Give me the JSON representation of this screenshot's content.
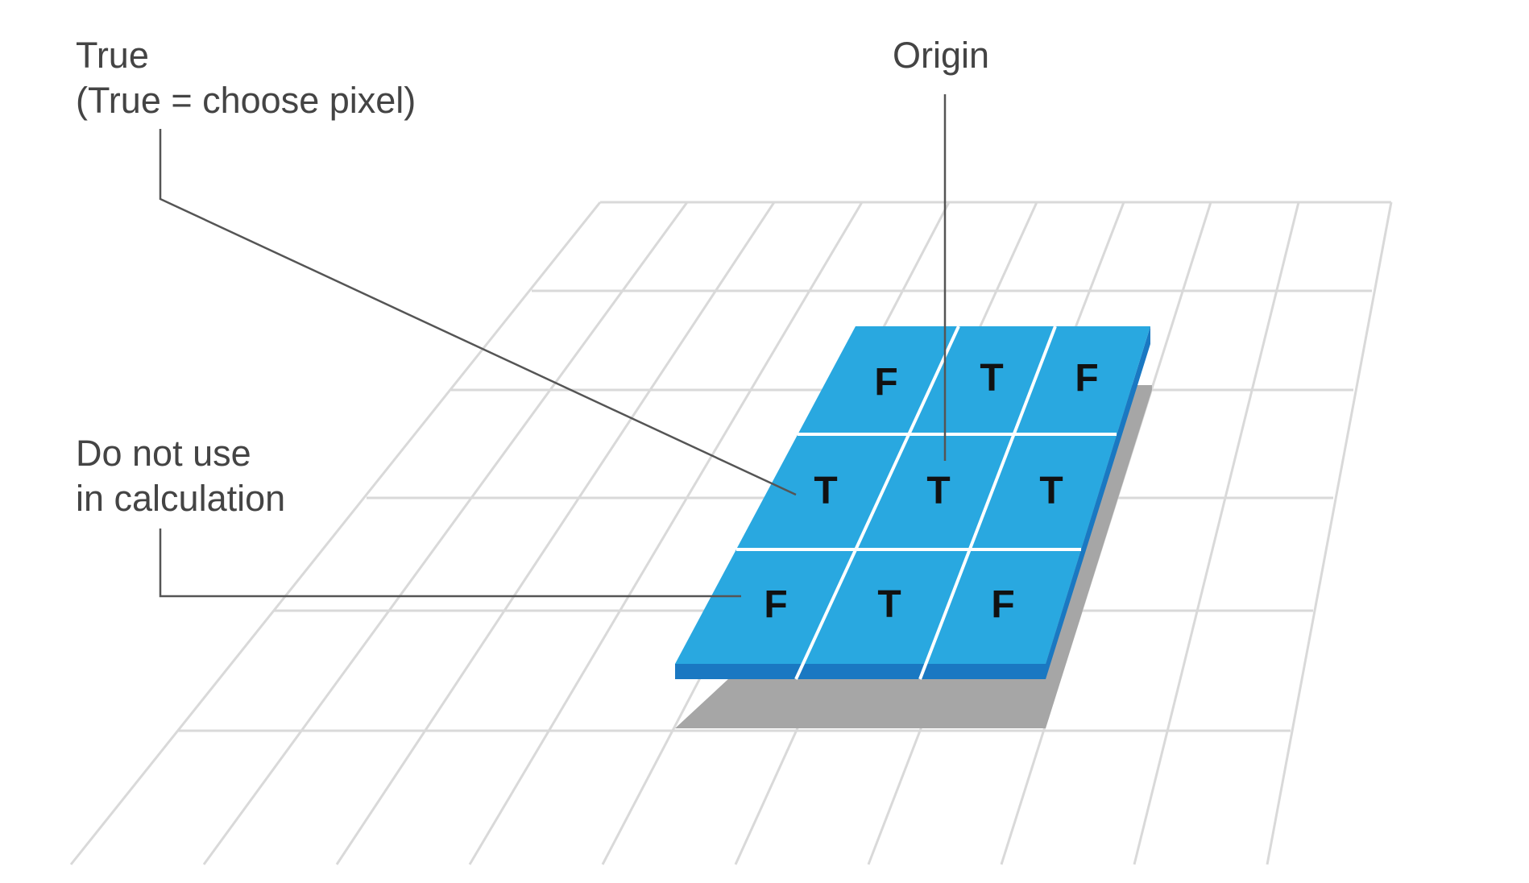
{
  "callouts": {
    "true_title": "True",
    "true_subtitle": "(True = choose pixel)",
    "origin": "Origin",
    "ignore_line1": "Do not use",
    "ignore_line2": "in calculation"
  },
  "kernel": {
    "rows": [
      [
        "F",
        "T",
        "F"
      ],
      [
        "T",
        "T",
        "T"
      ],
      [
        "F",
        "T",
        "F"
      ]
    ]
  },
  "colors": {
    "tile": "#29a8e0",
    "tile_edge": "#1a78c2",
    "shadow": "#a6a6a6",
    "grid": "#d9d9d9",
    "leader": "#555555"
  }
}
